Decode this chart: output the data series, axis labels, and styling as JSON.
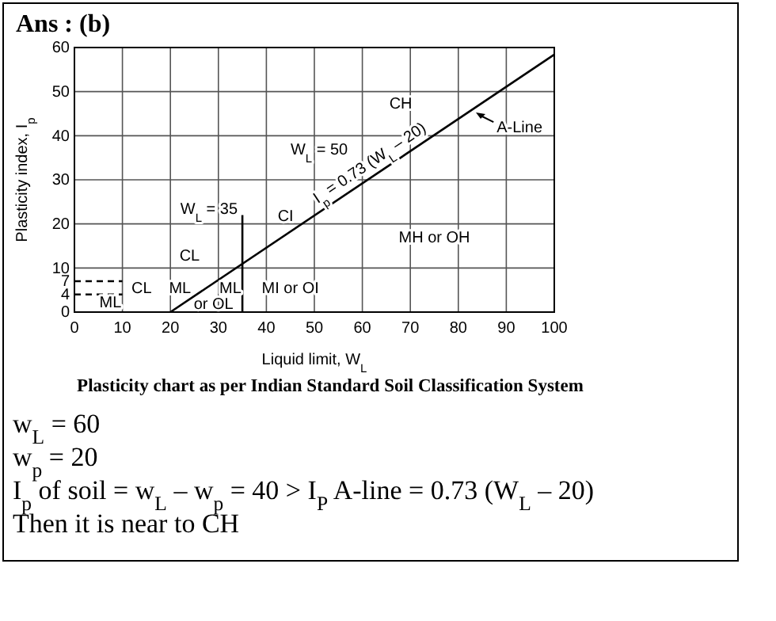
{
  "chart_data": {
    "type": "line",
    "title": "Ans :  (b)",
    "xlabel": "Liquid limit, W$_{L}$",
    "ylabel": "Plasticity index, I$_{p}$",
    "xlim": [
      0,
      100
    ],
    "xticks": [
      0,
      10,
      20,
      30,
      40,
      50,
      60,
      70,
      80,
      90,
      100
    ],
    "ylim": [
      0,
      60
    ],
    "yticks": [
      0,
      4,
      7,
      10,
      20,
      30,
      40,
      50,
      60
    ],
    "grid": true,
    "series": [
      {
        "x": [
          20,
          100
        ],
        "values": [
          0,
          58.4
        ],
        "color": "#000000"
      },
      {
        "x": [
          35,
          35
        ],
        "values": [
          0,
          22
        ],
        "color": "#000000"
      },
      {
        "x": [
          0,
          10
        ],
        "values": [
          7,
          7
        ],
        "color": "#000000",
        "line_style": "dashed"
      },
      {
        "x": [
          0,
          10
        ],
        "values": [
          4,
          4
        ],
        "color": "#000000",
        "line_style": "dashed"
      }
    ],
    "annotations": [
      {
        "text": "W$_{L}$ = 35",
        "x": 35,
        "y": 22
      },
      {
        "text": "I$_{p}$ = 0.73 (W$_{L}$ – 20)",
        "x": 63,
        "y": 31.4
      },
      "A-Line",
      "CH",
      "W$_{L}$ = 50",
      "CI",
      "CL",
      "MH or OH",
      "CL",
      "ML",
      "ML",
      "ML",
      "MI or OI",
      "or OL",
      "Plasticity chart as per Indian Standard Soil Classification System",
      "w$_{L}$ = 60",
      "w$_{p}$ = 20",
      "I$_{p}$ of soil = w$_{L}$ – w$_{p}$  = 40 > I$_{P}$ A-line = 0.73 (W$_{L}$ – 20)",
      "Then it is near to CH"
    ]
  }
}
